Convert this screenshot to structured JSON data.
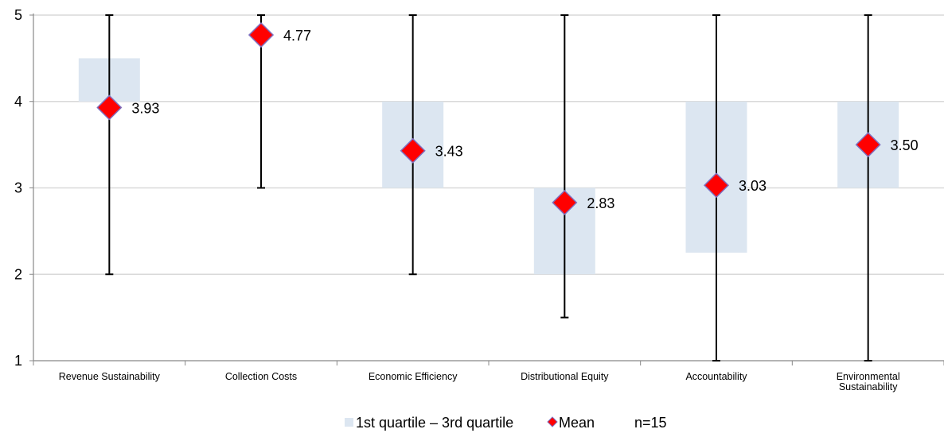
{
  "chart_data": {
    "type": "boxplot",
    "title": "",
    "xlabel": "",
    "ylabel": "",
    "ylim": [
      1,
      5
    ],
    "y_ticks": [
      "1",
      "2",
      "3",
      "4",
      "5"
    ],
    "grid": true,
    "legend_position": "bottom",
    "categories": [
      [
        "Revenue Sustainability"
      ],
      [
        "Collection Costs"
      ],
      [
        "Economic Efficiency"
      ],
      [
        "Distributional Equity"
      ],
      [
        "Accountability"
      ],
      [
        "Environmental",
        "Sustainability"
      ]
    ],
    "min": [
      2,
      3,
      2,
      1.5,
      1,
      1
    ],
    "max": [
      5,
      5,
      5,
      5,
      5,
      5
    ],
    "q1": [
      4,
      null,
      3,
      2,
      2.25,
      3
    ],
    "q3": [
      4.5,
      null,
      4,
      3,
      4,
      4
    ],
    "mean": [
      3.93,
      4.77,
      3.43,
      2.83,
      3.03,
      3.5
    ],
    "mean_labels": [
      "3.93",
      "4.77",
      "3.43",
      "2.83",
      "3.03",
      "3.50"
    ],
    "legend": {
      "quartile_label": "1st quartile – 3rd quartile",
      "mean_label": "Mean",
      "n_label": "n=15"
    },
    "colors": {
      "box_fill": "#dce6f1",
      "mean_fill": "#ff0000",
      "mean_stroke": "#7f6fbf",
      "whisker": "#000000",
      "grid": "#d9d9d9",
      "axis": "#888888"
    }
  }
}
